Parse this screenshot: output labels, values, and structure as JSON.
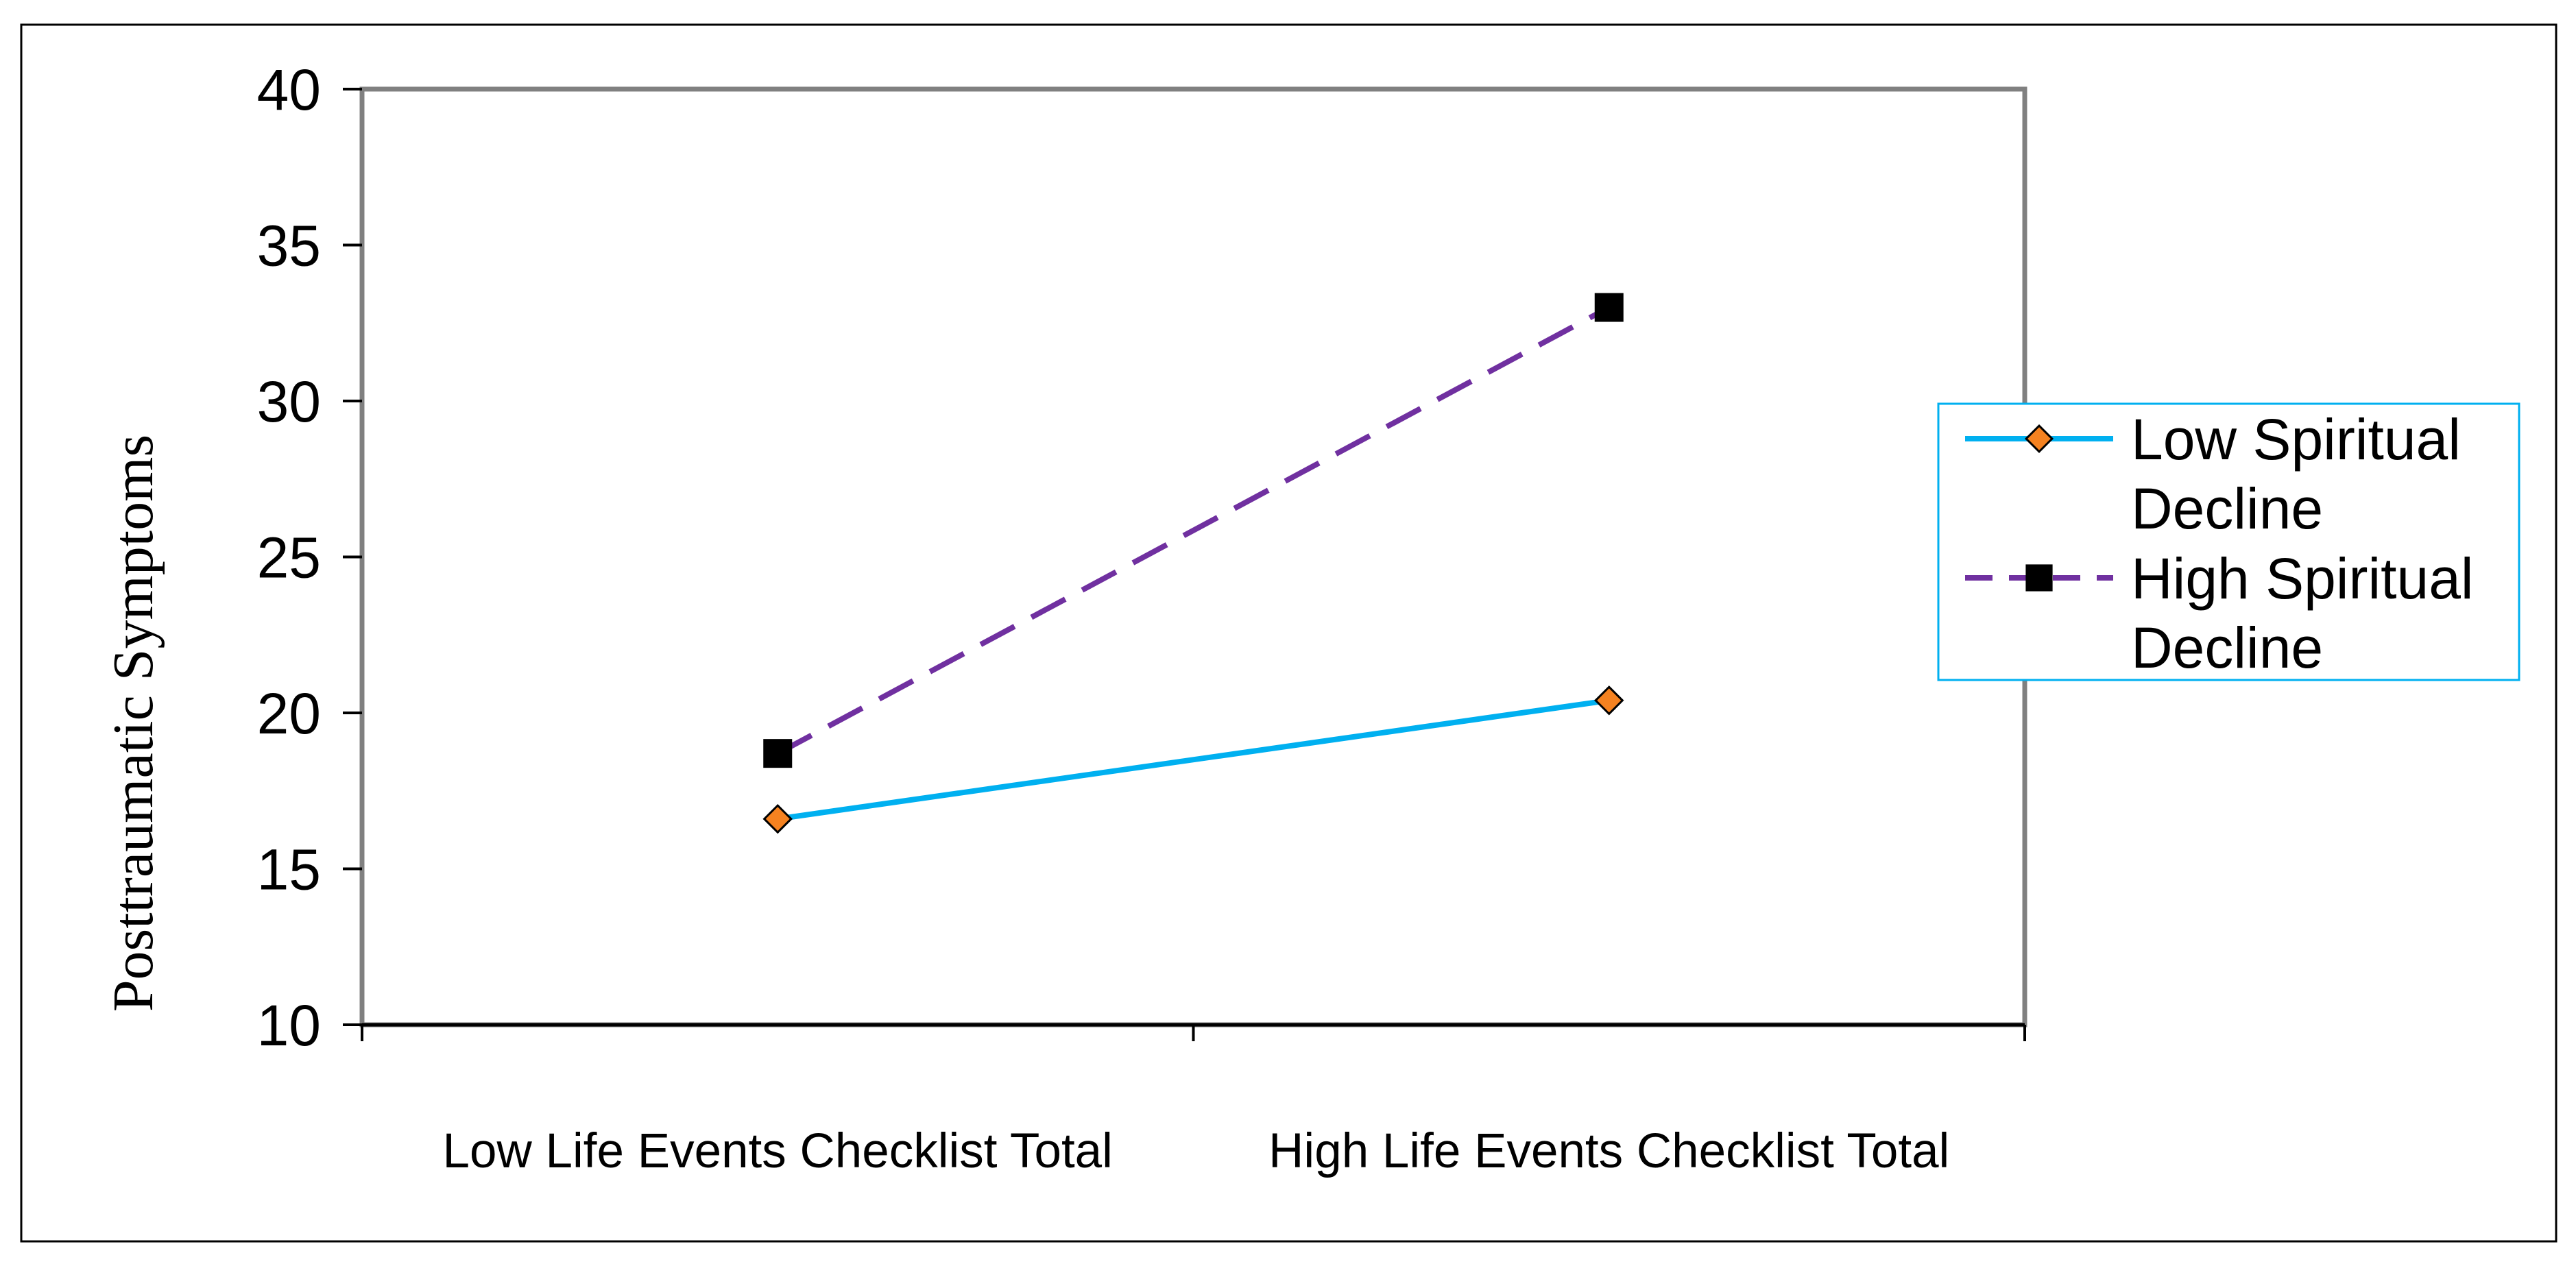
{
  "chart_data": {
    "type": "line",
    "categories": [
      "Low Life Events Checklist Total",
      "High Life Events Checklist Total"
    ],
    "ylabel": "Posttraumatic Symptoms",
    "xlabel": "",
    "ylim": [
      10,
      40
    ],
    "yticks": [
      10,
      15,
      20,
      25,
      30,
      35,
      40
    ],
    "grid": false,
    "legend_position": "right",
    "series": [
      {
        "name": "Low Spiritual Decline",
        "values": [
          16.6,
          20.4
        ],
        "color": "#00b0f0",
        "marker_color": "#f58220",
        "marker": "diamond",
        "dash": "solid"
      },
      {
        "name": "High Spiritual Decline",
        "values": [
          18.7,
          33.0
        ],
        "color": "#7030a0",
        "marker_color": "#000000",
        "marker": "square",
        "dash": "dashed"
      }
    ]
  }
}
